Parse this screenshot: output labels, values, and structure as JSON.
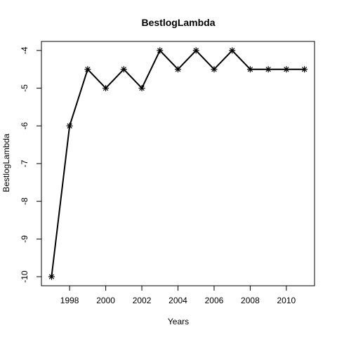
{
  "chart_data": {
    "type": "line",
    "title": "BestlogLambda",
    "xlabel": "Years",
    "ylabel": "BestlogLambda",
    "x": [
      1997,
      1998,
      1999,
      2000,
      2001,
      2002,
      2003,
      2004,
      2005,
      2006,
      2007,
      2008,
      2009,
      2010,
      2011
    ],
    "series": [
      {
        "values": [
          -10,
          -6,
          -4.5,
          -5,
          -4.5,
          -5,
          -4,
          -4.5,
          -4,
          -4.5,
          -4,
          -4.5,
          -4.5,
          -4.5,
          -4.5
        ]
      }
    ],
    "xlim": [
      1996.44,
      2011.56
    ],
    "ylim": [
      -10.24,
      -3.76
    ],
    "xticks": [
      1998,
      2000,
      2002,
      2004,
      2006,
      2008,
      2010
    ],
    "yticks": [
      -10,
      -9,
      -8,
      -7,
      -6,
      -5,
      -4
    ],
    "marker": "asterisk",
    "line_color": "#000000",
    "grid": false,
    "legend": "none"
  }
}
